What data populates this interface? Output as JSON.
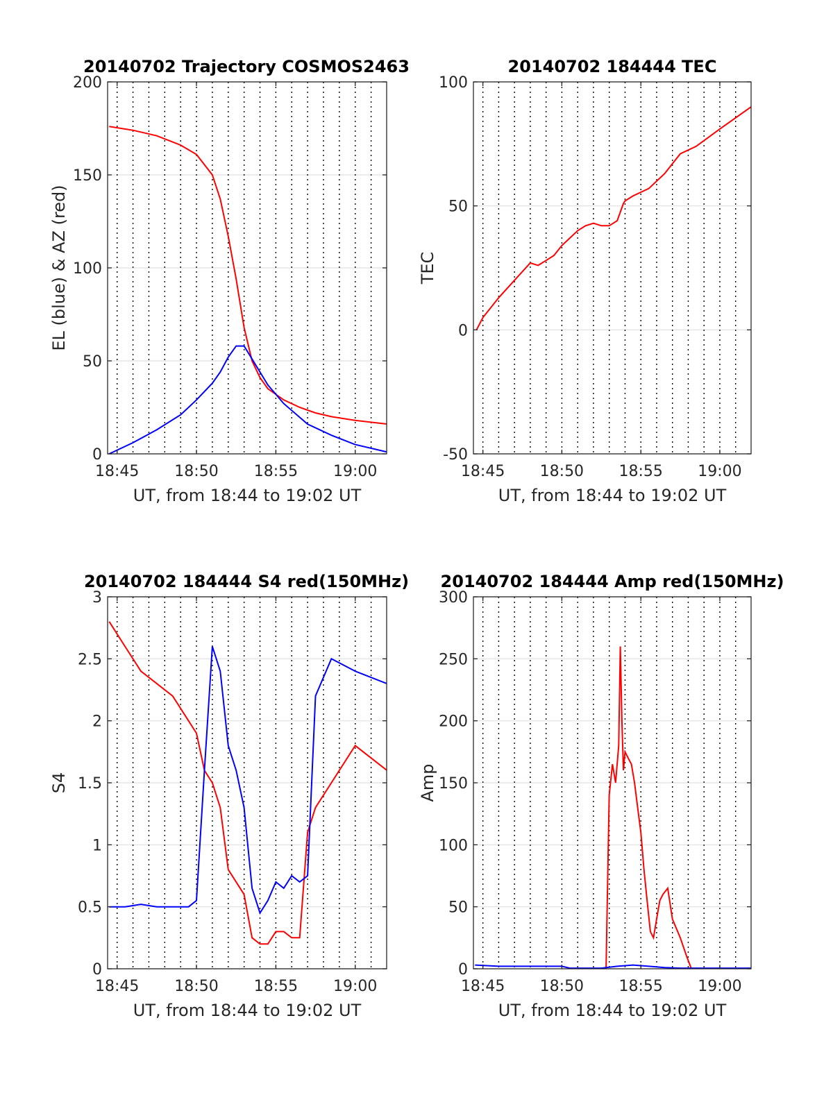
{
  "chart_data": [
    {
      "type": "line",
      "title": "20140702 Trajectory COSMOS2463",
      "xlabel": "UT, from 18:44 to 19:02 UT",
      "ylabel": "EL (blue) & AZ (red)",
      "xlim": [
        18.74,
        19.033
      ],
      "ylim": [
        0,
        200
      ],
      "xticks": [
        18.75,
        18.8333,
        18.9167,
        19.0
      ],
      "xticklabels": [
        "18:45",
        "18:50",
        "18:55",
        "19:00"
      ],
      "yticks": [
        0,
        50,
        100,
        150,
        200
      ],
      "yticklabels": [
        "0",
        "50",
        "100",
        "150",
        "200"
      ],
      "minor_x_grid_step_min": 1,
      "grid": true,
      "series": [
        {
          "color": "#ff0000",
          "x": [
            18.7417,
            18.7667,
            18.7917,
            18.8167,
            18.8333,
            18.85,
            18.8583,
            18.8667,
            18.875,
            18.8833,
            18.8917,
            18.9,
            18.9083,
            18.925,
            18.9417,
            18.9583,
            18.975,
            19.0,
            19.0333
          ],
          "y": [
            176,
            174,
            171,
            166,
            161,
            150,
            137,
            117,
            94,
            68,
            50,
            41,
            35,
            29,
            25,
            22,
            20,
            18,
            16
          ]
        },
        {
          "color": "#0000ff",
          "x": [
            18.7417,
            18.7667,
            18.7917,
            18.8167,
            18.8333,
            18.85,
            18.8583,
            18.8667,
            18.875,
            18.8833,
            18.8917,
            18.9083,
            18.925,
            18.95,
            18.975,
            19.0,
            19.0333
          ],
          "y": [
            0,
            6,
            13,
            21,
            29,
            38,
            44,
            52,
            58,
            58,
            51,
            37,
            27,
            16,
            10,
            5,
            1
          ]
        }
      ]
    },
    {
      "type": "line",
      "title": "20140702 184444 TEC",
      "xlabel": "UT, from 18:44 to 19:02 UT",
      "ylabel": "TEC",
      "xlim": [
        18.74,
        19.033
      ],
      "ylim": [
        -50,
        100
      ],
      "xticks": [
        18.75,
        18.8333,
        18.9167,
        19.0
      ],
      "xticklabels": [
        "18:45",
        "18:50",
        "18:55",
        "19:00"
      ],
      "yticks": [
        -50,
        0,
        50,
        100
      ],
      "yticklabels": [
        "-50",
        "0",
        "50",
        "100"
      ],
      "grid": true,
      "series": [
        {
          "color": "#ff0000",
          "x": [
            18.7433,
            18.75,
            18.7667,
            18.7833,
            18.8,
            18.8083,
            18.8167,
            18.825,
            18.8333,
            18.8417,
            18.85,
            18.8583,
            18.8667,
            18.875,
            18.8833,
            18.8917,
            18.8983,
            18.9,
            18.9083,
            18.925,
            18.9417,
            18.9583,
            18.975,
            19.0,
            19.0333
          ],
          "y": [
            0,
            5,
            13,
            20,
            27,
            26,
            28,
            30,
            34,
            37,
            40,
            42,
            43,
            42,
            42,
            44,
            51,
            52,
            54,
            57,
            63,
            71,
            74,
            81,
            90
          ]
        }
      ]
    },
    {
      "type": "line",
      "title": "20140702 184444 S4 red(150MHz)",
      "xlabel": "UT, from 18:44 to 19:02 UT",
      "ylabel": "S4",
      "xlim": [
        18.74,
        19.033
      ],
      "ylim": [
        0,
        3
      ],
      "xticks": [
        18.75,
        18.8333,
        18.9167,
        19.0
      ],
      "xticklabels": [
        "18:45",
        "18:50",
        "18:55",
        "19:00"
      ],
      "yticks": [
        0,
        0.5,
        1,
        1.5,
        2,
        2.5,
        3
      ],
      "yticklabels": [
        "0",
        "0.5",
        "1",
        "1.5",
        "2",
        "2.5",
        "3"
      ],
      "grid": true,
      "series": [
        {
          "color": "#ff0000",
          "x": [
            18.7417,
            18.7583,
            18.775,
            18.7917,
            18.8083,
            18.825,
            18.8333,
            18.8417,
            18.85,
            18.8583,
            18.8667,
            18.875,
            18.8833,
            18.8917,
            18.9,
            18.9083,
            18.9167,
            18.925,
            18.9333,
            18.9417,
            18.95,
            18.9583,
            18.975,
            19.0,
            19.0333
          ],
          "y": [
            2.8,
            2.6,
            2.4,
            2.3,
            2.2,
            2.0,
            1.9,
            1.6,
            1.5,
            1.3,
            0.8,
            0.7,
            0.6,
            0.25,
            0.2,
            0.2,
            0.3,
            0.3,
            0.25,
            0.25,
            1.1,
            1.3,
            1.5,
            1.8,
            1.6
          ]
        },
        {
          "color": "#0000ff",
          "x": [
            18.7417,
            18.7583,
            18.775,
            18.7917,
            18.8083,
            18.825,
            18.8333,
            18.8417,
            18.85,
            18.8583,
            18.8667,
            18.875,
            18.8833,
            18.8917,
            18.9,
            18.9083,
            18.9167,
            18.925,
            18.9333,
            18.9417,
            18.95,
            18.9583,
            18.975,
            19.0,
            19.0333
          ],
          "y": [
            0.5,
            0.5,
            0.52,
            0.5,
            0.5,
            0.5,
            0.55,
            1.6,
            2.6,
            2.4,
            1.8,
            1.6,
            1.3,
            0.65,
            0.45,
            0.55,
            0.7,
            0.65,
            0.75,
            0.7,
            0.75,
            2.2,
            2.5,
            2.4,
            2.3
          ]
        }
      ]
    },
    {
      "type": "line",
      "title": "20140702 184444 Amp red(150MHz)",
      "xlabel": "UT, from 18:44 to 19:02 UT",
      "ylabel": "Amp",
      "xlim": [
        18.74,
        19.033
      ],
      "ylim": [
        0,
        300
      ],
      "xticks": [
        18.75,
        18.8333,
        18.9167,
        19.0
      ],
      "xticklabels": [
        "18:45",
        "18:50",
        "18:55",
        "19:00"
      ],
      "yticks": [
        0,
        50,
        100,
        150,
        200,
        250,
        300
      ],
      "yticklabels": [
        "0",
        "50",
        "100",
        "150",
        "200",
        "250",
        "300"
      ],
      "grid": true,
      "series": [
        {
          "color": "#ff0000",
          "x": [
            18.88,
            18.8833,
            18.8867,
            18.89,
            18.8933,
            18.895,
            18.8967,
            18.8983,
            18.9,
            18.9033,
            18.9067,
            18.91,
            18.9133,
            18.9167,
            18.92,
            18.9233,
            18.9267,
            18.93,
            18.9333,
            18.9367,
            18.94,
            18.945,
            18.95,
            18.9583,
            18.965,
            18.97
          ],
          "y": [
            0,
            140,
            165,
            150,
            180,
            260,
            200,
            160,
            175,
            170,
            165,
            150,
            130,
            110,
            80,
            55,
            30,
            25,
            40,
            55,
            60,
            65,
            40,
            25,
            10,
            0
          ]
        },
        {
          "color": "#0000ff",
          "x": [
            18.7417,
            18.7667,
            18.7917,
            18.8167,
            18.8333,
            18.8417,
            18.8583,
            18.875,
            18.8917,
            18.9083,
            18.925,
            18.9417,
            18.9583,
            18.975,
            19.0,
            19.0333
          ],
          "y": [
            3,
            2,
            2,
            2,
            2,
            0.5,
            0.5,
            0.5,
            2,
            3,
            2,
            1,
            0.5,
            0.5,
            0.5,
            0.5
          ]
        }
      ]
    }
  ]
}
